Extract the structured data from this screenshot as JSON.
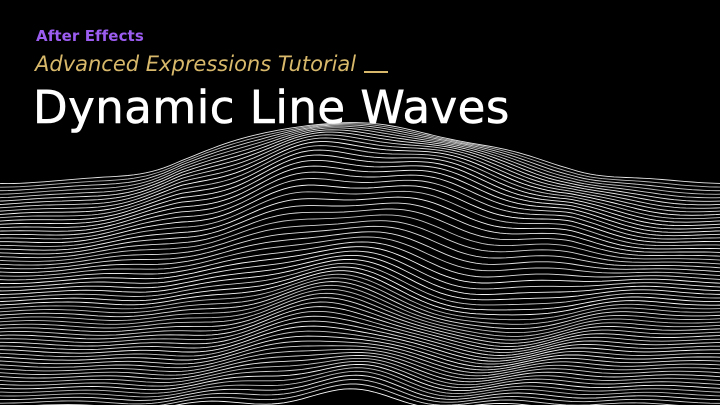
{
  "header": {
    "brand": "After Effects",
    "subtitle": "Advanced Expressions Tutorial",
    "title": "Dynamic Line Waves"
  },
  "colors": {
    "background": "#000000",
    "brand": "#9b5cf0",
    "subtitle": "#d8b96b",
    "title": "#ffffff",
    "lines": "#ffffff"
  },
  "artwork": {
    "name": "line-wave-landscape",
    "style": "white contour lines on black"
  }
}
